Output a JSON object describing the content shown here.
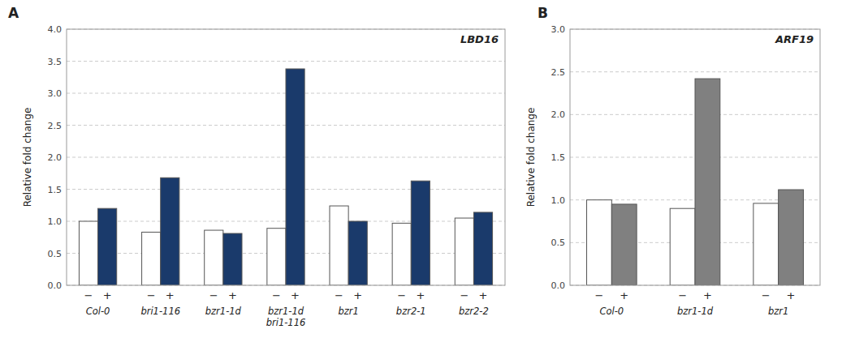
{
  "chart_data": [
    {
      "type": "bar",
      "title": "LBD16",
      "y_label": "Relative fold change",
      "annotations": [
        "A"
      ],
      "categories": [
        "Col-0",
        "bri1-116",
        "bzr1-1d",
        "bzr1-1d\nbri1-116",
        "bzr1",
        "bzr2-1",
        "bzr2-2"
      ],
      "series": [
        {
          "name": "−",
          "color": "#ffffff",
          "values": [
            1.0,
            0.83,
            0.86,
            0.89,
            1.24,
            0.97,
            1.05
          ]
        },
        {
          "name": "+",
          "color": "#1a3a6b",
          "values": [
            1.2,
            1.68,
            0.81,
            3.38,
            1.0,
            1.63,
            1.14
          ]
        }
      ],
      "ylim": [
        0,
        4.0
      ],
      "yticks": [
        {
          "value": 0,
          "label": "0.0"
        },
        0.5,
        {
          "value": 1,
          "label": "1.0"
        },
        1.5,
        {
          "value": 2,
          "label": "2.0"
        },
        2.5,
        {
          "value": 3,
          "label": "3.0"
        },
        3.5,
        {
          "value": 4,
          "label": "4.0"
        }
      ],
      "grid": true
    },
    {
      "type": "bar",
      "title": "ARF19",
      "y_label": "Relative fold change",
      "annotations": [
        "B"
      ],
      "categories": [
        "Col-0",
        "bzr1-1d",
        "bzr1"
      ],
      "series": [
        {
          "name": "−",
          "color": "#ffffff",
          "values": [
            1.0,
            0.9,
            0.96
          ]
        },
        {
          "name": "+",
          "color": "#808080",
          "values": [
            0.95,
            2.42,
            1.12
          ]
        }
      ],
      "ylim": [
        0,
        3.0
      ],
      "yticks": [
        {
          "value": 0,
          "label": "0.0"
        },
        0.5,
        {
          "value": 1,
          "label": "1.0"
        },
        1.5,
        {
          "value": 2,
          "label": "2.0"
        },
        2.5,
        {
          "value": 3,
          "label": "3.0"
        }
      ],
      "grid": true
    }
  ]
}
